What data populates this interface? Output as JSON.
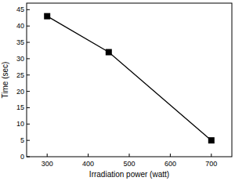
{
  "chart_data": {
    "type": "line",
    "x_label": "Irradiation power (watt)",
    "y_label": "Time (sec)",
    "x": [
      300,
      450,
      700
    ],
    "values": [
      43,
      32,
      5
    ],
    "color": "#000000",
    "marker": "square",
    "line_style": "solid",
    "xlim": [
      250,
      750
    ],
    "xticks": [
      300,
      400,
      500,
      600,
      700
    ],
    "ylim": [
      0,
      47
    ],
    "yticks": [
      0,
      5,
      10,
      15,
      20,
      25,
      30,
      35,
      40,
      45
    ],
    "grid": false
  }
}
